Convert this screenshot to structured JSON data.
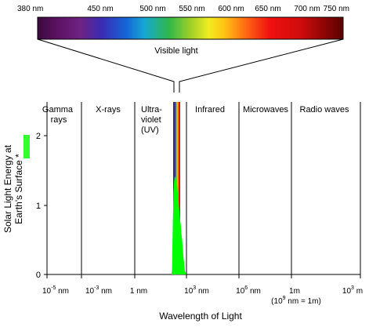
{
  "spectrum": {
    "tick_labels": [
      "380 nm",
      "450 nm",
      "500 nm",
      "550 nm",
      "600 nm",
      "650 nm",
      "700 nm",
      "750 nm"
    ],
    "caption": "Visible light"
  },
  "chart_data": {
    "type": "area",
    "ylabel_line1": "Solar Light Energy at",
    "ylabel_line2": "Earth's Surface *",
    "xlabel": "Wavelength of Light",
    "y_ticks": [
      "0",
      "1",
      "2"
    ],
    "ylim": [
      0,
      2.5
    ],
    "legend_swatch_color": "#33ff33",
    "fill_color": "#00ff00",
    "regions": [
      {
        "lines": [
          "Gamma",
          "rays"
        ]
      },
      {
        "lines": [
          "X-rays"
        ]
      },
      {
        "lines": [
          "Ultra-",
          "violet",
          "(UV)"
        ]
      },
      {
        "lines": [
          "Infrared"
        ]
      },
      {
        "lines": [
          "Microwaves"
        ]
      },
      {
        "lines": [
          "Radio waves"
        ]
      }
    ],
    "x_ticks": [
      {
        "base": "10",
        "exp": "-5",
        "unit": " nm"
      },
      {
        "base": "10",
        "exp": "-3",
        "unit": " nm"
      },
      {
        "base": "1 nm",
        "exp": "",
        "unit": ""
      },
      {
        "base": "10",
        "exp": "3",
        "unit": " nm"
      },
      {
        "base": "10",
        "exp": "6",
        "unit": " nm"
      },
      {
        "base": "1m",
        "exp": "",
        "unit": ""
      },
      {
        "base": "10",
        "exp": "3",
        "unit": " m"
      }
    ],
    "x_note": {
      "pre": "(10",
      "exp": "9",
      "post": " nm = 1m)"
    }
  }
}
